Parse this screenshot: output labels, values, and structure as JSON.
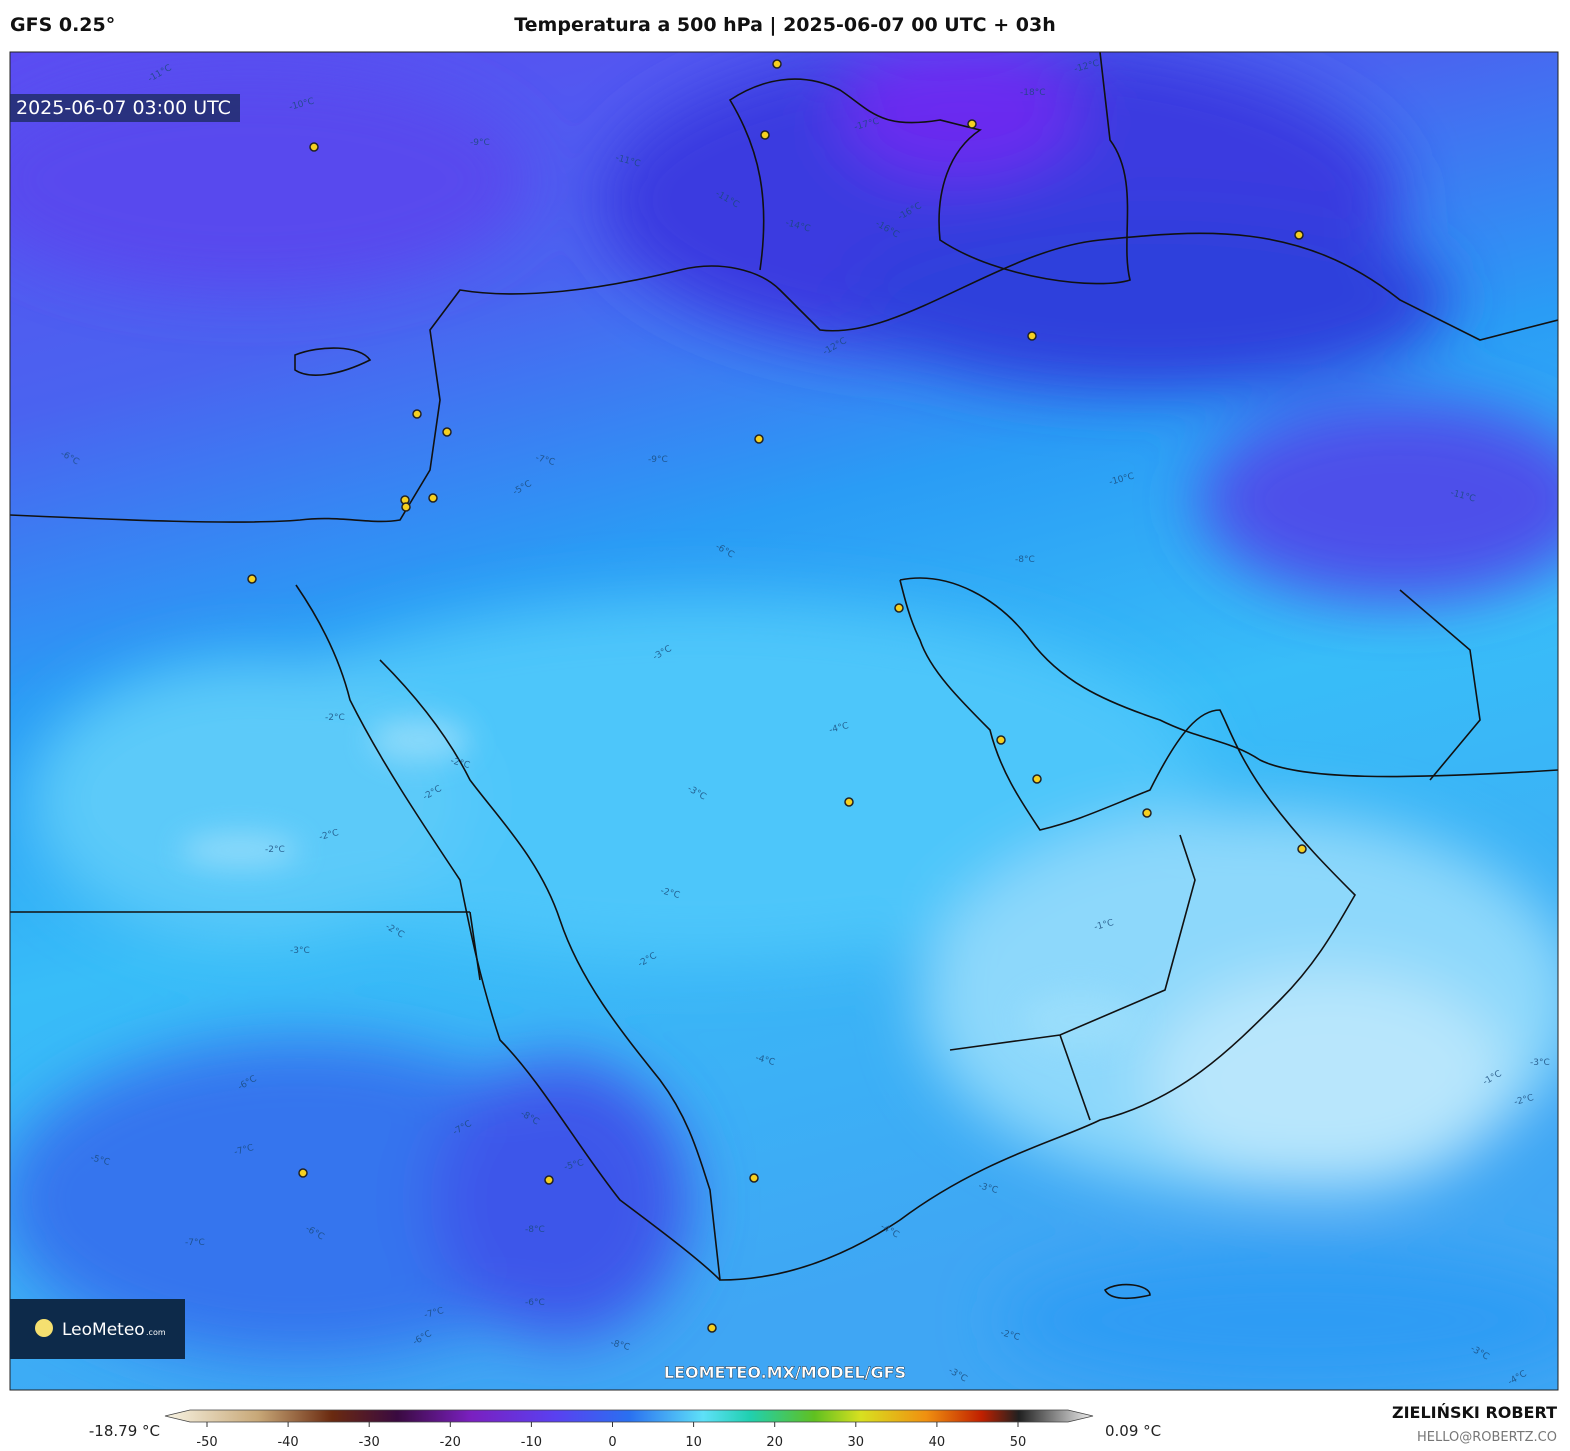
{
  "header": {
    "model": "GFS 0.25°",
    "title": "Temperatura a 500 hPa | 2025-06-07 00 UTC + 03h"
  },
  "map": {
    "valid_time": "2025-06-07 03:00 UTC",
    "watermark": "LEOMETEO.MX/MODEL/GFS",
    "logo": {
      "name": "LeoMeteo",
      "suffix": ".com"
    },
    "contour_labels": [
      "-11°C",
      "-10°C",
      "-9°C",
      "-11°C",
      "-11°C",
      "-12°C",
      "-17°C",
      "-18°C",
      "-14°C",
      "-16°C",
      "-16°C",
      "-12°C",
      "-9°C",
      "-7°C",
      "-6°C",
      "-5°C",
      "-10°C",
      "-8°C",
      "-11°C",
      "-6°C",
      "-3°C",
      "-4°C",
      "-2°C",
      "-2°C",
      "-3°C",
      "-2°C",
      "-2°C",
      "-2°C",
      "-2°C",
      "-2°C",
      "-2°C",
      "-1°C",
      "-3°C",
      "-4°C",
      "-8°C",
      "-7°C",
      "-5°C",
      "-8°C",
      "-3°C",
      "-4°C",
      "-6°C",
      "-7°C",
      "-7°C",
      "-5°C",
      "-6°C",
      "-6°C",
      "-7°C",
      "-6°C",
      "-8°C",
      "-3°C",
      "-1°C",
      "-2°C",
      "-3°C",
      "-2°C",
      "-3°C",
      "-4°C"
    ]
  },
  "colorbar": {
    "min_label": "-18.79 °C",
    "max_label": "0.09 °C",
    "ticks": [
      -50,
      -40,
      -30,
      -20,
      -10,
      0,
      10,
      20,
      30,
      40,
      50
    ]
  },
  "footer": {
    "author": "ZIELIŃSKI ROBERT",
    "contact": "HELLO@ROBERTZ.CO"
  }
}
